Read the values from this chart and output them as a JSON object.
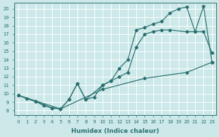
{
  "xlabel": "Humidex (Indice chaleur)",
  "bg_color": "#cce8e8",
  "line_color": "#2a7070",
  "grid_color": "#ffffff",
  "xlim_min": -0.5,
  "xlim_max": 23.5,
  "ylim_min": 7.5,
  "ylim_max": 20.7,
  "xticks": [
    0,
    1,
    2,
    3,
    4,
    5,
    6,
    7,
    8,
    9,
    10,
    11,
    12,
    13,
    14,
    15,
    16,
    17,
    18,
    19,
    20,
    21,
    22,
    23
  ],
  "yticks": [
    8,
    9,
    10,
    11,
    12,
    13,
    14,
    15,
    16,
    17,
    18,
    19,
    20
  ],
  "curve_a_x": [
    0,
    1,
    2,
    3,
    4,
    5,
    6,
    7,
    8,
    9,
    10,
    11,
    12,
    13,
    14,
    15,
    16,
    17,
    18,
    19,
    20,
    21,
    22,
    23
  ],
  "curve_a_y": [
    9.8,
    9.4,
    9.1,
    8.6,
    8.3,
    8.2,
    9.3,
    11.2,
    9.3,
    9.6,
    11.0,
    11.5,
    13.0,
    14.0,
    17.5,
    17.8,
    18.2,
    18.5,
    19.5,
    20.0,
    20.2,
    17.3,
    17.3,
    14.8
  ],
  "curve_b_x": [
    0,
    2,
    4,
    5,
    6,
    7,
    8,
    10,
    11,
    12,
    13,
    14,
    15,
    16,
    17,
    18,
    20,
    21,
    22,
    23
  ],
  "curve_b_y": [
    9.8,
    9.1,
    8.3,
    8.2,
    9.3,
    11.2,
    9.3,
    11.0,
    11.5,
    12.0,
    12.5,
    15.5,
    17.0,
    17.3,
    17.5,
    17.5,
    17.3,
    17.3,
    20.3,
    13.7
  ],
  "curve_c_x": [
    0,
    5,
    10,
    15,
    20,
    23
  ],
  "curve_c_y": [
    9.8,
    8.2,
    10.5,
    11.8,
    12.5,
    13.7
  ]
}
